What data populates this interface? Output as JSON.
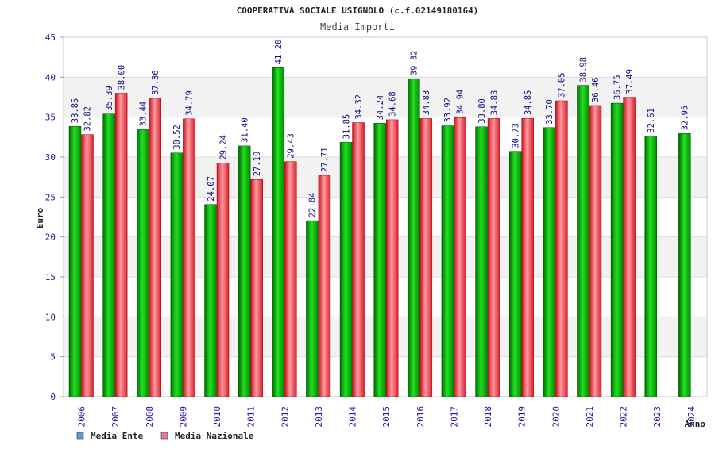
{
  "chart_data": {
    "type": "bar",
    "title": "COOPERATIVA SOCIALE USIGNOLO (c.f.02149180164)",
    "subtitle": "Media Importi",
    "xlabel": "Anno",
    "ylabel": "Euro",
    "ylim": [
      0,
      45
    ],
    "yticks": [
      "0",
      "5",
      "10",
      "15",
      "20",
      "25",
      "30",
      "35",
      "40",
      "45"
    ],
    "grid": true,
    "legend_position": "bottom-left",
    "categories": [
      "2006",
      "2007",
      "2008",
      "2009",
      "2010",
      "2011",
      "2012",
      "2013",
      "2014",
      "2015",
      "2016",
      "2017",
      "2018",
      "2019",
      "2020",
      "2021",
      "2022",
      "2023",
      "2024"
    ],
    "series": [
      {
        "name": "Media Ente",
        "color": "#00b400",
        "legend_color": "#5b9bd5",
        "values": [
          33.85,
          35.39,
          33.44,
          30.52,
          24.07,
          31.4,
          41.2,
          22.04,
          31.85,
          34.24,
          39.82,
          33.92,
          33.8,
          30.73,
          33.7,
          38.98,
          36.75,
          32.61,
          32.95
        ],
        "labels": [
          "33.85",
          "35.39",
          "33.44",
          "30.52",
          "24.07",
          "31.40",
          "41.20",
          "22.04",
          "31.85",
          "34.24",
          "39.82",
          "33.92",
          "33.80",
          "30.73",
          "33.70",
          "38.98",
          "36.75",
          "32.61",
          "32.95"
        ]
      },
      {
        "name": "Media Nazionale",
        "color": "#e0202c",
        "legend_color": "#e878a8",
        "values": [
          32.82,
          38.0,
          37.36,
          34.79,
          29.24,
          27.19,
          29.43,
          27.71,
          34.32,
          34.68,
          34.83,
          34.94,
          34.83,
          34.85,
          37.05,
          36.46,
          37.49,
          null,
          null
        ],
        "labels": [
          "32.82",
          "38.00",
          "37.36",
          "34.79",
          "29.24",
          "27.19",
          "29.43",
          "27.71",
          "34.32",
          "34.68",
          "34.83",
          "34.94",
          "34.83",
          "34.85",
          "37.05",
          "36.46",
          "37.49",
          null,
          null
        ]
      }
    ]
  }
}
